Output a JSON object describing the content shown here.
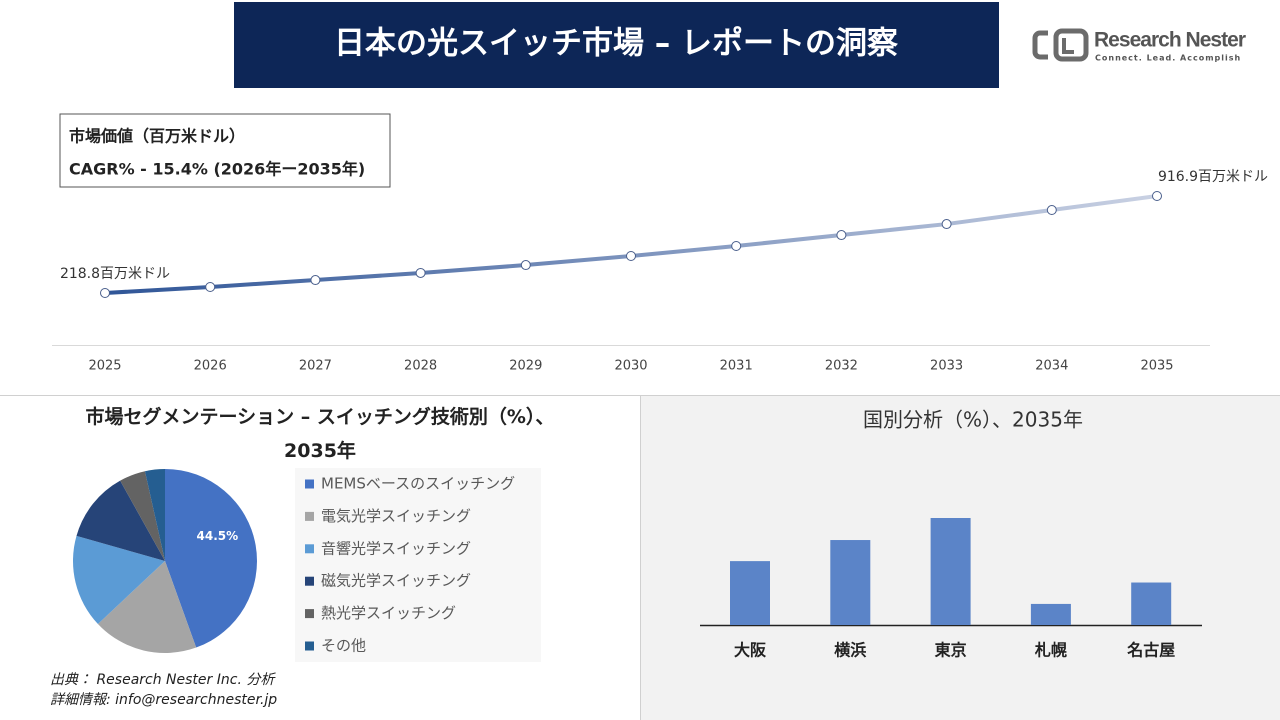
{
  "header": {
    "title": "日本の光スイッチ市場 – レポートの洞察",
    "logo": "Research Nester",
    "tagline": "Connect. Lead. Accomplish"
  },
  "info_box": {
    "line1": "市場価値（百万米ドル）",
    "line2": "CAGR% - 15.4% (2026年ー2035年)"
  },
  "chart_data": [
    {
      "type": "line",
      "x": [
        2025,
        2026,
        2027,
        2028,
        2029,
        2030,
        2031,
        2032,
        2033,
        2034,
        2035
      ],
      "series": [
        {
          "color": "#2f5597",
          "values": [
            218.8,
            262,
            312,
            363,
            420,
            485,
            557,
            636,
            715,
            816,
            916.9
          ],
          "value_labels": [
            "218.8百万米ドル",
            null,
            null,
            null,
            null,
            null,
            null,
            null,
            null,
            null,
            "916.9百万米ドル"
          ]
        }
      ]
    },
    {
      "type": "pie",
      "title": "市場セグメンテーション – スイッチング技術別（%）、2035年",
      "categories": [
        "MEMSベースのスイッチング",
        "電気光学スイッチング",
        "音響光学スイッチング",
        "磁気光学スイッチング",
        "熱光学スイッチング",
        "その他"
      ],
      "values": [
        44.5,
        18.5,
        16.4,
        12.5,
        4.6,
        3.5
      ],
      "value_labels": [
        "44.5%",
        null,
        null,
        null,
        null,
        null
      ],
      "colors": [
        "#4472c4",
        "#a5a5a5",
        "#5b9bd5",
        "#264478",
        "#636363",
        "#255e91"
      ]
    },
    {
      "type": "bar",
      "title": "国別分析（%）、2035年",
      "categories": [
        "大阪",
        "横浜",
        "東京",
        "札幌",
        "名古屋"
      ],
      "values": [
        20,
        26.6,
        33.5,
        6.6,
        13.3
      ],
      "color": "#5b84c8"
    }
  ],
  "source": {
    "line1": "出典： Research Nester Inc. 分析",
    "line2": "詳細情報: info@researchnester.jp"
  }
}
